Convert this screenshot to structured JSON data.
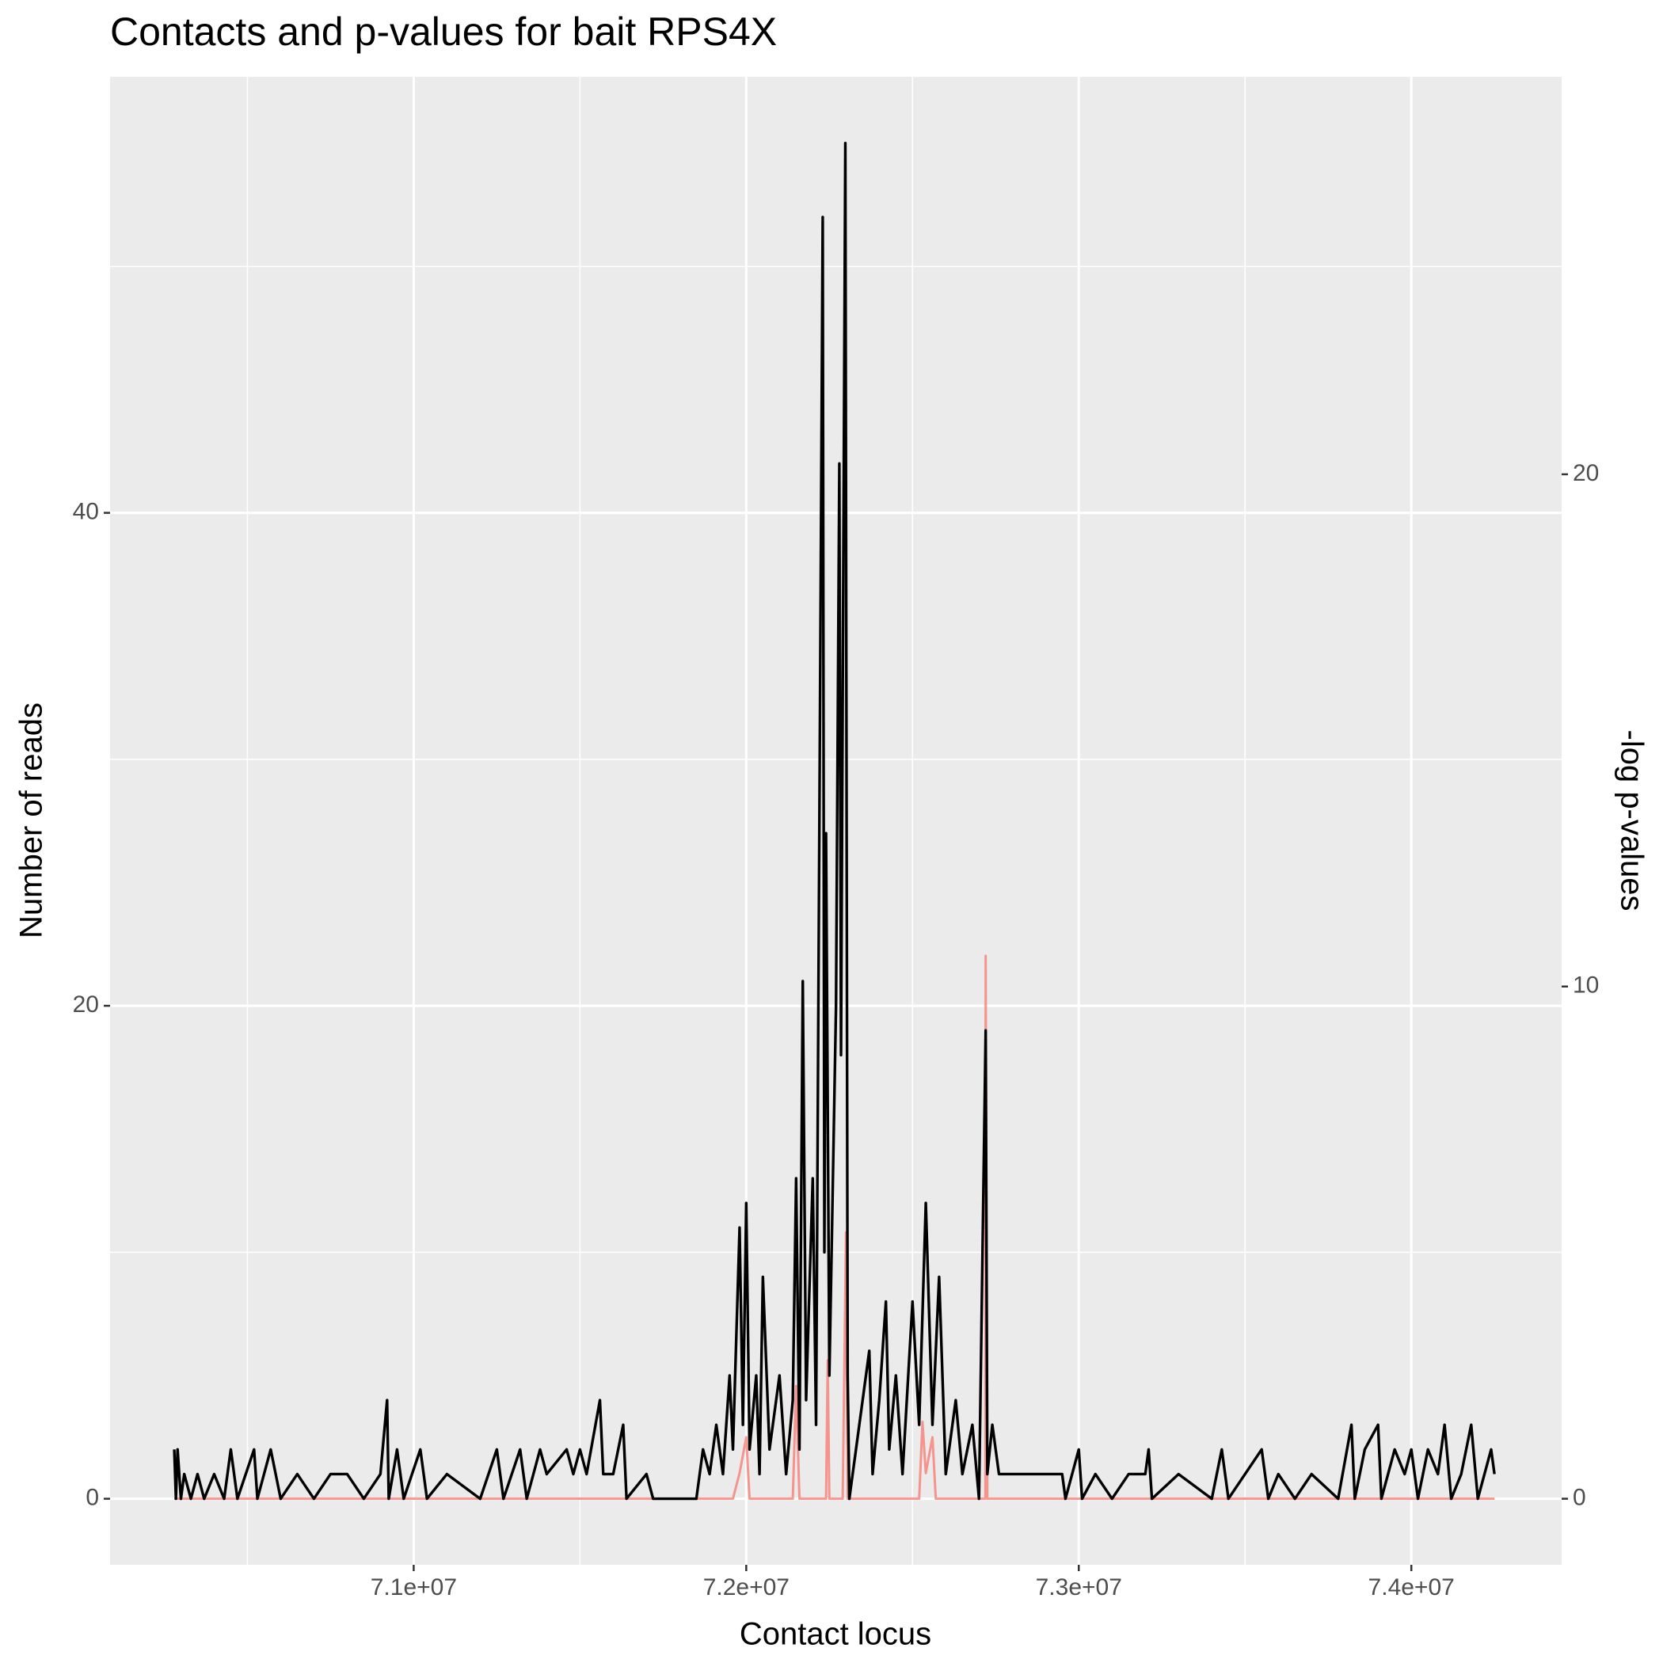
{
  "chart_data": {
    "type": "line",
    "title": "Contacts and p-values for bait RPS4X",
    "xlabel": "Contact locus",
    "ylabel": "Number of reads",
    "y2label": "-log p-values",
    "xlim": [
      70087000,
      74452000
    ],
    "ylim": [
      -2.68,
      57.69
    ],
    "y2lim": [
      -1.29,
      27.76
    ],
    "xticks": [
      {
        "value": 71000000,
        "label": "7.1e+07"
      },
      {
        "value": 72000000,
        "label": "7.2e+07"
      },
      {
        "value": 73000000,
        "label": "7.3e+07"
      },
      {
        "value": 74000000,
        "label": "7.4e+07"
      }
    ],
    "xminorticks": [
      70500000,
      71500000,
      72500000,
      73500000
    ],
    "yticks": [
      0,
      20,
      40
    ],
    "yminorticks": [
      10,
      30,
      50
    ],
    "y2ticks": [
      0,
      10,
      20
    ],
    "grid": true,
    "series": [
      {
        "color": "#f8766d",
        "axis": "y2",
        "x": [
          70280000,
          71960000,
          71980000,
          72000000,
          72010000,
          72140000,
          72150000,
          72160000,
          72240000,
          72245000,
          72250000,
          72290000,
          72300000,
          72305000,
          72520000,
          72530000,
          72540000,
          72560000,
          72570000,
          72719000,
          72720000,
          72725000,
          74250000
        ],
        "values": [
          0,
          0,
          0.5,
          1.2,
          0,
          0,
          2.2,
          0,
          0,
          2.7,
          0,
          0,
          5.2,
          0,
          0,
          1.5,
          0.5,
          1.2,
          0,
          0,
          10.6,
          0,
          0
        ]
      },
      {
        "color": "#000000",
        "x": [
          70280000,
          70285000,
          70290000,
          70300000,
          70310000,
          70330000,
          70350000,
          70370000,
          70400000,
          70430000,
          70450000,
          70470000,
          70520000,
          70530000,
          70570000,
          70600000,
          70650000,
          70700000,
          70750000,
          70800000,
          70850000,
          70900000,
          70920000,
          70925000,
          70950000,
          70970000,
          71020000,
          71040000,
          71100000,
          71200000,
          71250000,
          71270000,
          71320000,
          71340000,
          71380000,
          71400000,
          71460000,
          71480000,
          71500000,
          71520000,
          71560000,
          71570000,
          71600000,
          71630000,
          71640000,
          71700000,
          71720000,
          71850000,
          71870000,
          71890000,
          71910000,
          71930000,
          71950000,
          71960000,
          71980000,
          71990000,
          72000000,
          72010000,
          72030000,
          72040000,
          72050000,
          72070000,
          72100000,
          72120000,
          72140000,
          72150000,
          72160000,
          72170000,
          72180000,
          72200000,
          72210000,
          72230000,
          72235000,
          72240000,
          72250000,
          72270000,
          72280000,
          72285000,
          72298000,
          72305000,
          72310000,
          72330000,
          72370000,
          72380000,
          72400000,
          72420000,
          72430000,
          72450000,
          72470000,
          72500000,
          72520000,
          72540000,
          72560000,
          72580000,
          72600000,
          72630000,
          72650000,
          72680000,
          72700000,
          72720000,
          72725000,
          72740000,
          72760000,
          72800000,
          72950000,
          72960000,
          73000000,
          73010000,
          73050000,
          73100000,
          73150000,
          73200000,
          73210000,
          73220000,
          73300000,
          73400000,
          73430000,
          73450000,
          73500000,
          73550000,
          73570000,
          73600000,
          73650000,
          73700000,
          73780000,
          73820000,
          73830000,
          73860000,
          73900000,
          73910000,
          73950000,
          73980000,
          74000000,
          74020000,
          74050000,
          74080000,
          74100000,
          74120000,
          74150000,
          74180000,
          74200000,
          74240000,
          74250000
        ],
        "values": [
          2,
          0,
          2,
          0,
          1,
          0,
          1,
          0,
          1,
          0,
          2,
          0,
          2,
          0,
          2,
          0,
          1,
          0,
          1,
          1,
          0,
          1,
          4,
          0,
          2,
          0,
          2,
          0,
          1,
          0,
          2,
          0,
          2,
          0,
          2,
          1,
          2,
          1,
          2,
          1,
          4,
          1,
          1,
          3,
          0,
          1,
          0,
          0,
          2,
          1,
          3,
          1,
          5,
          2,
          11,
          3,
          12,
          2,
          5,
          1,
          9,
          2,
          5,
          1,
          4,
          13,
          2,
          21,
          4,
          13,
          3,
          52,
          10,
          27,
          5,
          20,
          42,
          18,
          55,
          5,
          0,
          2,
          6,
          1,
          4,
          8,
          2,
          5,
          1,
          8,
          3,
          12,
          3,
          9,
          1,
          4,
          1,
          3,
          0,
          19,
          1,
          3,
          1,
          1,
          1,
          0,
          2,
          0,
          1,
          0,
          1,
          1,
          2,
          0,
          1,
          0,
          2,
          0,
          1,
          2,
          0,
          1,
          0,
          1,
          0,
          3,
          0,
          2,
          3,
          0,
          2,
          1,
          2,
          0,
          2,
          1,
          3,
          0,
          1,
          3,
          0,
          2,
          1
        ]
      }
    ]
  }
}
